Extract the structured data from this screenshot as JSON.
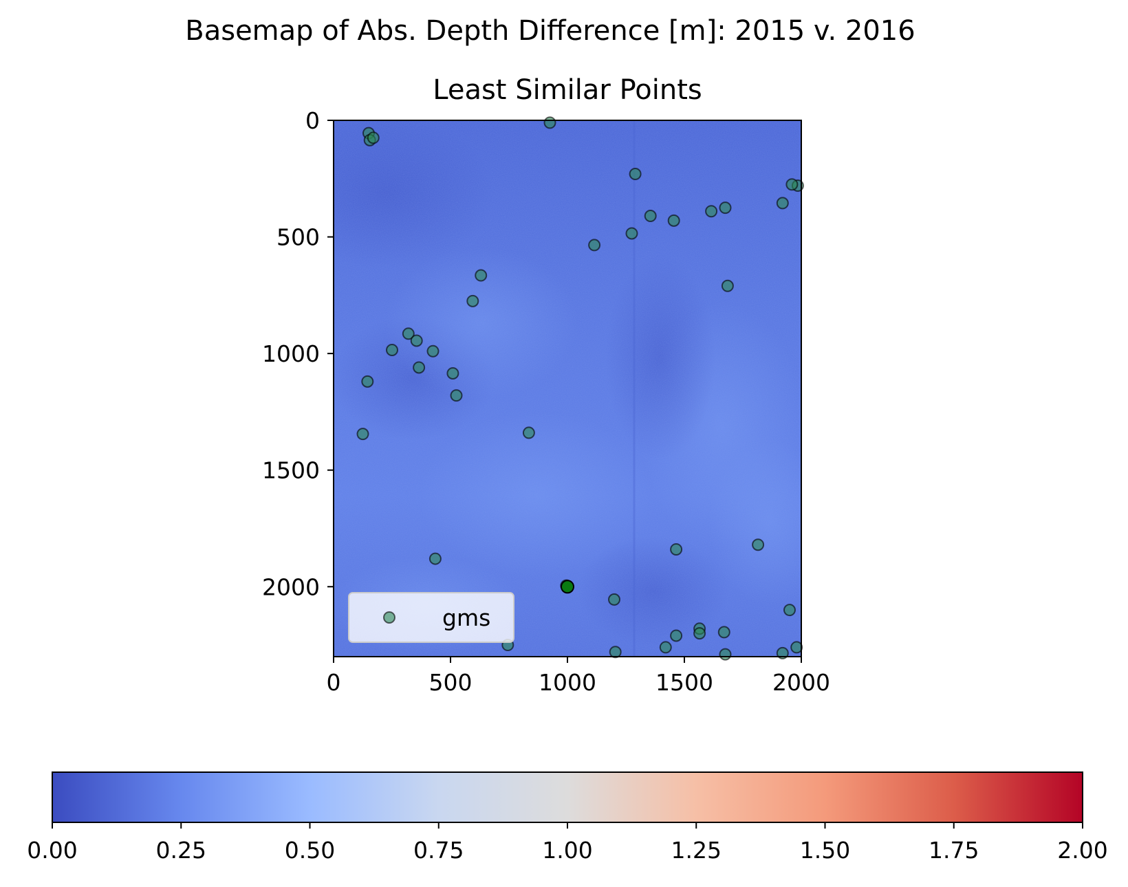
{
  "title": "Basemap of Abs. Depth Difference [m]: 2015 v. 2016",
  "subtitle": "Least Similar Points",
  "chart_data": {
    "type": "scatter",
    "title": "Basemap of Abs. Depth Difference [m]: 2015 v. 2016",
    "subtitle": "Least Similar Points",
    "background": "raster heatmap (coolwarm colormap), mostly low values",
    "xlim": [
      0,
      2000
    ],
    "ylim": [
      2300,
      0
    ],
    "y_inverted": true,
    "x_ticks": [
      0,
      500,
      1000,
      1500,
      2000
    ],
    "y_ticks": [
      0,
      500,
      1000,
      1500,
      2000
    ],
    "legend": {
      "placement": "lower-left",
      "entries": [
        "gms"
      ]
    },
    "series": [
      {
        "name": "gms",
        "color": "#2e8b57",
        "marker": "circle",
        "x": [
          150,
          155,
          170,
          925,
          1290,
          1985,
          1960,
          1920,
          1355,
          1455,
          1615,
          1675,
          1275,
          1115,
          630,
          595,
          1685,
          320,
          355,
          250,
          425,
          365,
          510,
          145,
          525,
          125,
          835,
          1815,
          1465,
          435,
          995,
          1200,
          1950,
          1565,
          1565,
          1670,
          1465,
          745,
          1420,
          1205,
          1675,
          1920,
          1980
        ],
        "y": [
          55,
          85,
          75,
          10,
          230,
          280,
          275,
          355,
          410,
          430,
          390,
          375,
          485,
          535,
          665,
          775,
          710,
          915,
          945,
          985,
          990,
          1060,
          1085,
          1120,
          1180,
          1345,
          1340,
          1820,
          1840,
          1880,
          1995,
          2055,
          2100,
          2180,
          2200,
          2195,
          2210,
          2250,
          2260,
          2280,
          2290,
          2285,
          2260
        ]
      }
    ]
  },
  "colorbar": {
    "type": "colorbar",
    "colormap": "coolwarm",
    "vmin": 0.0,
    "vmax": 2.0,
    "ticks": [
      "0.00",
      "0.25",
      "0.50",
      "0.75",
      "1.00",
      "1.25",
      "1.50",
      "1.75",
      "2.00"
    ],
    "tick_values": [
      0,
      0.25,
      0.5,
      0.75,
      1.0,
      1.25,
      1.5,
      1.75,
      2.0
    ],
    "colors": [
      "#3b4cc0",
      "#6788ee",
      "#9abbff",
      "#c9d7f0",
      "#dddcdc",
      "#f6bfa6",
      "#f49a7b",
      "#dc5d4a",
      "#b40426"
    ]
  },
  "legend": {
    "label": "gms"
  }
}
